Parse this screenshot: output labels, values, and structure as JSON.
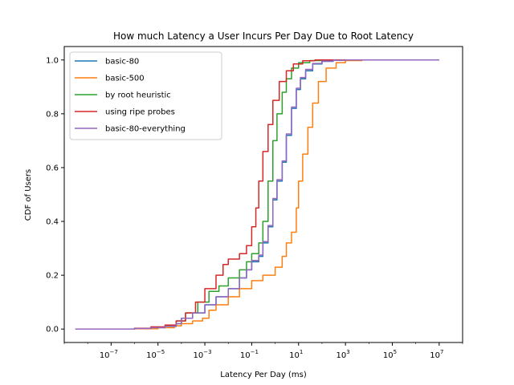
{
  "chart_data": {
    "type": "line",
    "title": "How much Latency a User Incurs Per Day Due to Root Latency",
    "xlabel": "Latency Per Day (ms)",
    "ylabel": "CDF of Users",
    "x_scale": "log",
    "xlim": [
      1e-09,
      100000000.0
    ],
    "ylim": [
      -0.05,
      1.05
    ],
    "x_ticks": [
      {
        "value": 1e-07,
        "base": "10",
        "exp": "−7"
      },
      {
        "value": 1e-05,
        "base": "10",
        "exp": "−5"
      },
      {
        "value": 0.001,
        "base": "10",
        "exp": "−3"
      },
      {
        "value": 0.1,
        "base": "10",
        "exp": "−1"
      },
      {
        "value": 10.0,
        "base": "10",
        "exp": "1"
      },
      {
        "value": 1000.0,
        "base": "10",
        "exp": "3"
      },
      {
        "value": 100000.0,
        "base": "10",
        "exp": "5"
      },
      {
        "value": 10000000.0,
        "base": "10",
        "exp": "7"
      }
    ],
    "y_ticks": [
      {
        "value": 0.0,
        "label": "0.0"
      },
      {
        "value": 0.2,
        "label": "0.2"
      },
      {
        "value": 0.4,
        "label": "0.4"
      },
      {
        "value": 0.6,
        "label": "0.6"
      },
      {
        "value": 0.8,
        "label": "0.8"
      },
      {
        "value": 1.0,
        "label": "1.0"
      }
    ],
    "grid": false,
    "legend_position": "upper-left",
    "series": [
      {
        "name": "basic-80",
        "color": "#1f77b4",
        "points": [
          [
            3e-09,
            0.0
          ],
          [
            1e-07,
            0.0
          ],
          [
            1e-06,
            0.002
          ],
          [
            5e-06,
            0.005
          ],
          [
            2e-05,
            0.01
          ],
          [
            6e-05,
            0.02
          ],
          [
            0.0001,
            0.04
          ],
          [
            0.0003,
            0.06
          ],
          [
            0.001,
            0.09
          ],
          [
            0.003,
            0.12
          ],
          [
            0.01,
            0.15
          ],
          [
            0.03,
            0.19
          ],
          [
            0.06,
            0.22
          ],
          [
            0.1,
            0.25
          ],
          [
            0.2,
            0.27
          ],
          [
            0.3,
            0.32
          ],
          [
            0.5,
            0.38
          ],
          [
            0.8,
            0.48
          ],
          [
            1.2,
            0.55
          ],
          [
            2,
            0.62
          ],
          [
            3,
            0.72
          ],
          [
            5,
            0.82
          ],
          [
            8,
            0.89
          ],
          [
            12,
            0.93
          ],
          [
            20,
            0.96
          ],
          [
            40,
            0.985
          ],
          [
            100,
            0.995
          ],
          [
            300,
            0.999
          ],
          [
            1000,
            1.0
          ],
          [
            10000000.0,
            1.0
          ]
        ]
      },
      {
        "name": "basic-500",
        "color": "#ff7f0e",
        "points": [
          [
            3e-09,
            0.0
          ],
          [
            1e-07,
            0.0
          ],
          [
            1e-06,
            0.001
          ],
          [
            1e-05,
            0.005
          ],
          [
            5e-05,
            0.012
          ],
          [
            0.0001,
            0.02
          ],
          [
            0.0003,
            0.03
          ],
          [
            0.0008,
            0.04
          ],
          [
            0.0015,
            0.07
          ],
          [
            0.003,
            0.09
          ],
          [
            0.01,
            0.12
          ],
          [
            0.03,
            0.15
          ],
          [
            0.1,
            0.18
          ],
          [
            0.3,
            0.2
          ],
          [
            1,
            0.23
          ],
          [
            2,
            0.27
          ],
          [
            3,
            0.32
          ],
          [
            5,
            0.36
          ],
          [
            8,
            0.45
          ],
          [
            10,
            0.55
          ],
          [
            15,
            0.65
          ],
          [
            25,
            0.75
          ],
          [
            40,
            0.84
          ],
          [
            70,
            0.92
          ],
          [
            150,
            0.97
          ],
          [
            400,
            0.99
          ],
          [
            1000,
            0.998
          ],
          [
            5000,
            1.0
          ],
          [
            10000000.0,
            1.0
          ]
        ]
      },
      {
        "name": "by root heuristic",
        "color": "#2ca02c",
        "points": [
          [
            3e-09,
            0.0
          ],
          [
            1e-07,
            0.0
          ],
          [
            1e-06,
            0.003
          ],
          [
            5e-06,
            0.007
          ],
          [
            2e-05,
            0.012
          ],
          [
            6e-05,
            0.03
          ],
          [
            0.00015,
            0.06
          ],
          [
            0.0005,
            0.1
          ],
          [
            0.0015,
            0.14
          ],
          [
            0.004,
            0.16
          ],
          [
            0.01,
            0.19
          ],
          [
            0.03,
            0.22
          ],
          [
            0.06,
            0.25
          ],
          [
            0.1,
            0.28
          ],
          [
            0.2,
            0.32
          ],
          [
            0.3,
            0.4
          ],
          [
            0.5,
            0.55
          ],
          [
            0.8,
            0.7
          ],
          [
            1.2,
            0.8
          ],
          [
            2,
            0.88
          ],
          [
            3,
            0.93
          ],
          [
            5,
            0.97
          ],
          [
            10,
            0.99
          ],
          [
            30,
            0.998
          ],
          [
            100,
            1.0
          ],
          [
            10000000.0,
            1.0
          ]
        ]
      },
      {
        "name": "using ripe probes",
        "color": "#d62728",
        "points": [
          [
            3e-09,
            0.0
          ],
          [
            1e-07,
            0.0
          ],
          [
            1e-06,
            0.003
          ],
          [
            5e-06,
            0.008
          ],
          [
            2e-05,
            0.015
          ],
          [
            6e-05,
            0.03
          ],
          [
            0.00015,
            0.06
          ],
          [
            0.0004,
            0.1
          ],
          [
            0.001,
            0.15
          ],
          [
            0.003,
            0.2
          ],
          [
            0.006,
            0.24
          ],
          [
            0.01,
            0.26
          ],
          [
            0.03,
            0.28
          ],
          [
            0.06,
            0.31
          ],
          [
            0.1,
            0.38
          ],
          [
            0.15,
            0.45
          ],
          [
            0.2,
            0.55
          ],
          [
            0.3,
            0.66
          ],
          [
            0.5,
            0.76
          ],
          [
            0.8,
            0.85
          ],
          [
            1.5,
            0.92
          ],
          [
            3,
            0.96
          ],
          [
            6,
            0.985
          ],
          [
            15,
            0.997
          ],
          [
            50,
            1.0
          ],
          [
            10000000.0,
            1.0
          ]
        ]
      },
      {
        "name": "basic-80-everything",
        "color": "#9467bd",
        "points": [
          [
            3e-09,
            0.0
          ],
          [
            1e-07,
            0.0
          ],
          [
            1e-06,
            0.002
          ],
          [
            5e-06,
            0.005
          ],
          [
            2e-05,
            0.01
          ],
          [
            6e-05,
            0.02
          ],
          [
            0.0001,
            0.04
          ],
          [
            0.0003,
            0.06
          ],
          [
            0.001,
            0.09
          ],
          [
            0.003,
            0.12
          ],
          [
            0.01,
            0.15
          ],
          [
            0.03,
            0.19
          ],
          [
            0.06,
            0.22
          ],
          [
            0.1,
            0.255
          ],
          [
            0.2,
            0.275
          ],
          [
            0.3,
            0.325
          ],
          [
            0.5,
            0.385
          ],
          [
            0.8,
            0.485
          ],
          [
            1.2,
            0.555
          ],
          [
            2,
            0.625
          ],
          [
            3,
            0.725
          ],
          [
            5,
            0.825
          ],
          [
            8,
            0.895
          ],
          [
            12,
            0.935
          ],
          [
            20,
            0.965
          ],
          [
            40,
            0.987
          ],
          [
            100,
            0.996
          ],
          [
            300,
            0.999
          ],
          [
            1000,
            1.0
          ],
          [
            10000000.0,
            1.0
          ]
        ]
      }
    ]
  }
}
